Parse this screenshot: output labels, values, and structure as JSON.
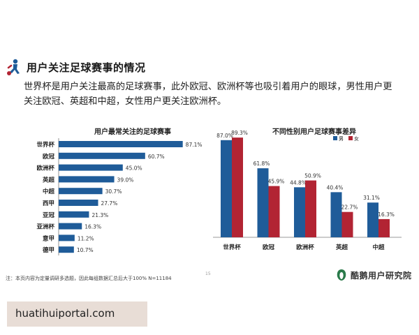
{
  "header": {
    "title": "用户关注足球赛事的情况",
    "summary": "世界杯是用户关注最高的足球赛事，此外欧冠、欧洲杯等也吸引着用户的眼球，男性用户更关注欧冠、英超和中超，女性用户更关注欧洲杯。"
  },
  "chart_data": [
    {
      "type": "bar",
      "orientation": "horizontal",
      "title": "用户最常关注的足球赛事",
      "categories": [
        "世界杯",
        "欧冠",
        "欧洲杯",
        "英超",
        "中超",
        "西甲",
        "亚冠",
        "亚洲杯",
        "意甲",
        "德甲"
      ],
      "values": [
        87.1,
        60.7,
        45.0,
        39.0,
        30.7,
        27.7,
        21.3,
        16.3,
        11.2,
        10.7
      ],
      "labels": [
        "87.1%",
        "60.7%",
        "45.0%",
        "39.0%",
        "30.7%",
        "27.7%",
        "21.3%",
        "16.3%",
        "11.2%",
        "10.7%"
      ],
      "value_unit": "%",
      "color": "#1f5c99"
    },
    {
      "type": "bar",
      "title": "不同性别用户足球赛事差异",
      "categories": [
        "世界杯",
        "欧冠",
        "欧洲杯",
        "英超",
        "中超"
      ],
      "series": [
        {
          "name": "男",
          "color": "#1f5c99",
          "values": [
            87.0,
            61.8,
            44.8,
            40.4,
            31.1
          ],
          "labels": [
            "87.0%",
            "61.8%",
            "44.8%",
            "40.4%",
            "31.1%"
          ]
        },
        {
          "name": "女",
          "color": "#b22433",
          "values": [
            89.3,
            45.9,
            50.9,
            22.7,
            16.3
          ],
          "labels": [
            "89.3%",
            "45.9%",
            "50.9%",
            "22.7%",
            "16.3%"
          ]
        }
      ],
      "legend": "top-right",
      "value_unit": "%"
    }
  ],
  "footer": {
    "note": "注：本页内容为定量调研多选题，因此每组数据汇总后大于100%  N=11184",
    "page_number": "15",
    "brand": "酷鹅用户研究院"
  },
  "watermark": "huatihuiportal.com"
}
